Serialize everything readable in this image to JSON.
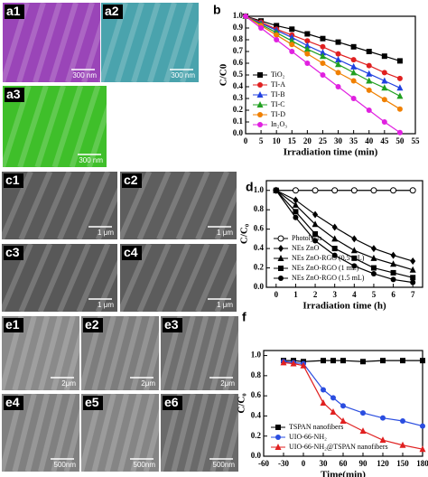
{
  "panels": [
    {
      "label": "a1",
      "scale": "300 nm",
      "color": "#9a45b8"
    },
    {
      "label": "a2",
      "scale": "300 nm",
      "color": "#4aa3ad"
    },
    {
      "label": "a3",
      "scale": "300 nm",
      "color": "#3fbf2a"
    },
    {
      "label": "c1",
      "scale": "1 μm",
      "color": "#5a5a5a"
    },
    {
      "label": "c2",
      "scale": "1 μm",
      "color": "#5e5e5e"
    },
    {
      "label": "c3",
      "scale": "1 μm",
      "color": "#585858"
    },
    {
      "label": "c4",
      "scale": "1 μm",
      "color": "#5c5c5c"
    },
    {
      "label": "e1",
      "scale": "2μm",
      "color": "#8a8a8a"
    },
    {
      "label": "e2",
      "scale": "2μm",
      "color": "#7d7d7d"
    },
    {
      "label": "e3",
      "scale": "2μm",
      "color": "#6f6f6f"
    },
    {
      "label": "e4",
      "scale": "500nm",
      "color": "#808080"
    },
    {
      "label": "e5",
      "scale": "500nm",
      "color": "#858585"
    },
    {
      "label": "e6",
      "scale": "500nm",
      "color": "#6a6a6a"
    }
  ],
  "chart_data": [
    {
      "type": "line",
      "label": "b",
      "xlabel": "Irradiation time (min)",
      "ylabel": "C/C0",
      "legend": "lower left",
      "x": [
        0,
        5,
        10,
        15,
        20,
        25,
        30,
        35,
        40,
        45,
        50
      ],
      "xlim": [
        0,
        55
      ],
      "xticks": [
        0,
        5,
        10,
        15,
        20,
        25,
        30,
        35,
        40,
        45,
        50,
        55
      ],
      "ylim": [
        0,
        1
      ],
      "yticks": [
        {
          "value": 0,
          "label": "0.0"
        },
        0.1,
        0.2,
        0.3,
        0.4,
        0.5,
        0.6,
        0.7,
        0.8,
        0.9,
        {
          "value": 1,
          "label": "1.0"
        }
      ],
      "series": [
        {
          "name": "TiO₂",
          "color": "#000000",
          "marker": "square",
          "values": [
            1.0,
            0.96,
            0.92,
            0.89,
            0.85,
            0.81,
            0.78,
            0.74,
            0.7,
            0.66,
            0.62
          ]
        },
        {
          "name": "TI-A",
          "color": "#e02020",
          "marker": "circle",
          "values": [
            1.0,
            0.95,
            0.89,
            0.84,
            0.79,
            0.74,
            0.68,
            0.63,
            0.58,
            0.52,
            0.47
          ]
        },
        {
          "name": "TI-B",
          "color": "#2040e0",
          "marker": "triangle",
          "values": [
            1.0,
            0.94,
            0.88,
            0.82,
            0.75,
            0.69,
            0.63,
            0.57,
            0.51,
            0.45,
            0.39
          ]
        },
        {
          "name": "TI-C",
          "color": "#20a020",
          "marker": "triangle",
          "values": [
            1.0,
            0.93,
            0.86,
            0.79,
            0.72,
            0.66,
            0.59,
            0.52,
            0.45,
            0.39,
            0.32
          ]
        },
        {
          "name": "TI-D",
          "color": "#f08000",
          "marker": "circle",
          "values": [
            1.0,
            0.92,
            0.84,
            0.76,
            0.68,
            0.6,
            0.52,
            0.45,
            0.37,
            0.29,
            0.21
          ]
        },
        {
          "name": "In₂O₃",
          "color": "#e020e0",
          "marker": "circle",
          "values": [
            1.0,
            0.9,
            0.8,
            0.7,
            0.6,
            0.5,
            0.4,
            0.3,
            0.2,
            0.1,
            0.01
          ]
        }
      ]
    },
    {
      "type": "line",
      "label": "d",
      "xlabel": "Irradiation time (h)",
      "ylabel": "C/C₀",
      "legend": "lower left",
      "x": [
        0,
        1,
        2,
        3,
        4,
        5,
        6,
        7
      ],
      "xlim": [
        -0.5,
        7.5
      ],
      "xticks": [
        0,
        1,
        2,
        3,
        4,
        5,
        6,
        7
      ],
      "ylim": [
        0,
        1.1
      ],
      "yticks": [
        {
          "value": 0,
          "label": "0.0"
        },
        0.2,
        0.4,
        0.6,
        0.8,
        {
          "value": 1,
          "label": "1.0"
        }
      ],
      "series": [
        {
          "name": "Photolysis",
          "color": "#000000",
          "marker": "open-circle",
          "values": [
            1.0,
            1.0,
            1.0,
            1.0,
            1.0,
            1.0,
            1.0,
            1.0
          ]
        },
        {
          "name": "NEs ZnO",
          "color": "#000000",
          "marker": "diamond",
          "values": [
            1.0,
            0.9,
            0.75,
            0.62,
            0.5,
            0.4,
            0.33,
            0.27
          ]
        },
        {
          "name": "NEs ZnO-RGO (0.5 mL)",
          "color": "#000000",
          "marker": "triangle",
          "values": [
            1.0,
            0.85,
            0.65,
            0.5,
            0.38,
            0.3,
            0.24,
            0.18
          ]
        },
        {
          "name": "NEs ZnO-RGO (1 mL)",
          "color": "#000000",
          "marker": "square",
          "values": [
            1.0,
            0.78,
            0.55,
            0.4,
            0.3,
            0.2,
            0.15,
            0.1
          ]
        },
        {
          "name": "NEs ZnO-RGO (1.5 mL)",
          "color": "#000000",
          "marker": "circle",
          "values": [
            1.0,
            0.72,
            0.48,
            0.33,
            0.22,
            0.14,
            0.08,
            0.05
          ]
        }
      ]
    },
    {
      "type": "line",
      "label": "f",
      "xlabel": "Time(min)",
      "ylabel": "C/C₀",
      "legend": "lower left",
      "x": [
        -30,
        -15,
        0,
        30,
        45,
        60,
        90,
        120,
        150,
        180
      ],
      "xlim": [
        -60,
        180
      ],
      "xticks": [
        -60,
        -30,
        0,
        30,
        60,
        90,
        120,
        150,
        180
      ],
      "ylim": [
        0,
        1.05
      ],
      "yticks": [
        {
          "value": 0,
          "label": "0.0"
        },
        0.2,
        0.4,
        0.6,
        0.8,
        {
          "value": 1,
          "label": "1.0"
        }
      ],
      "series": [
        {
          "name": "TSPAN nanofibers",
          "color": "#000000",
          "marker": "square",
          "values": [
            0.95,
            0.95,
            0.94,
            0.95,
            0.95,
            0.95,
            0.94,
            0.95,
            0.95,
            0.95
          ]
        },
        {
          "name": "UIO-66-NH₂",
          "color": "#2a4de0",
          "marker": "circle",
          "values": [
            0.94,
            0.93,
            0.92,
            0.66,
            0.58,
            0.5,
            0.43,
            0.38,
            0.35,
            0.3
          ]
        },
        {
          "name": "UIO-66-NH₂@TSPAN nanofibers",
          "color": "#e02020",
          "marker": "triangle",
          "values": [
            0.93,
            0.92,
            0.9,
            0.53,
            0.44,
            0.35,
            0.25,
            0.16,
            0.11,
            0.07
          ]
        }
      ]
    }
  ]
}
